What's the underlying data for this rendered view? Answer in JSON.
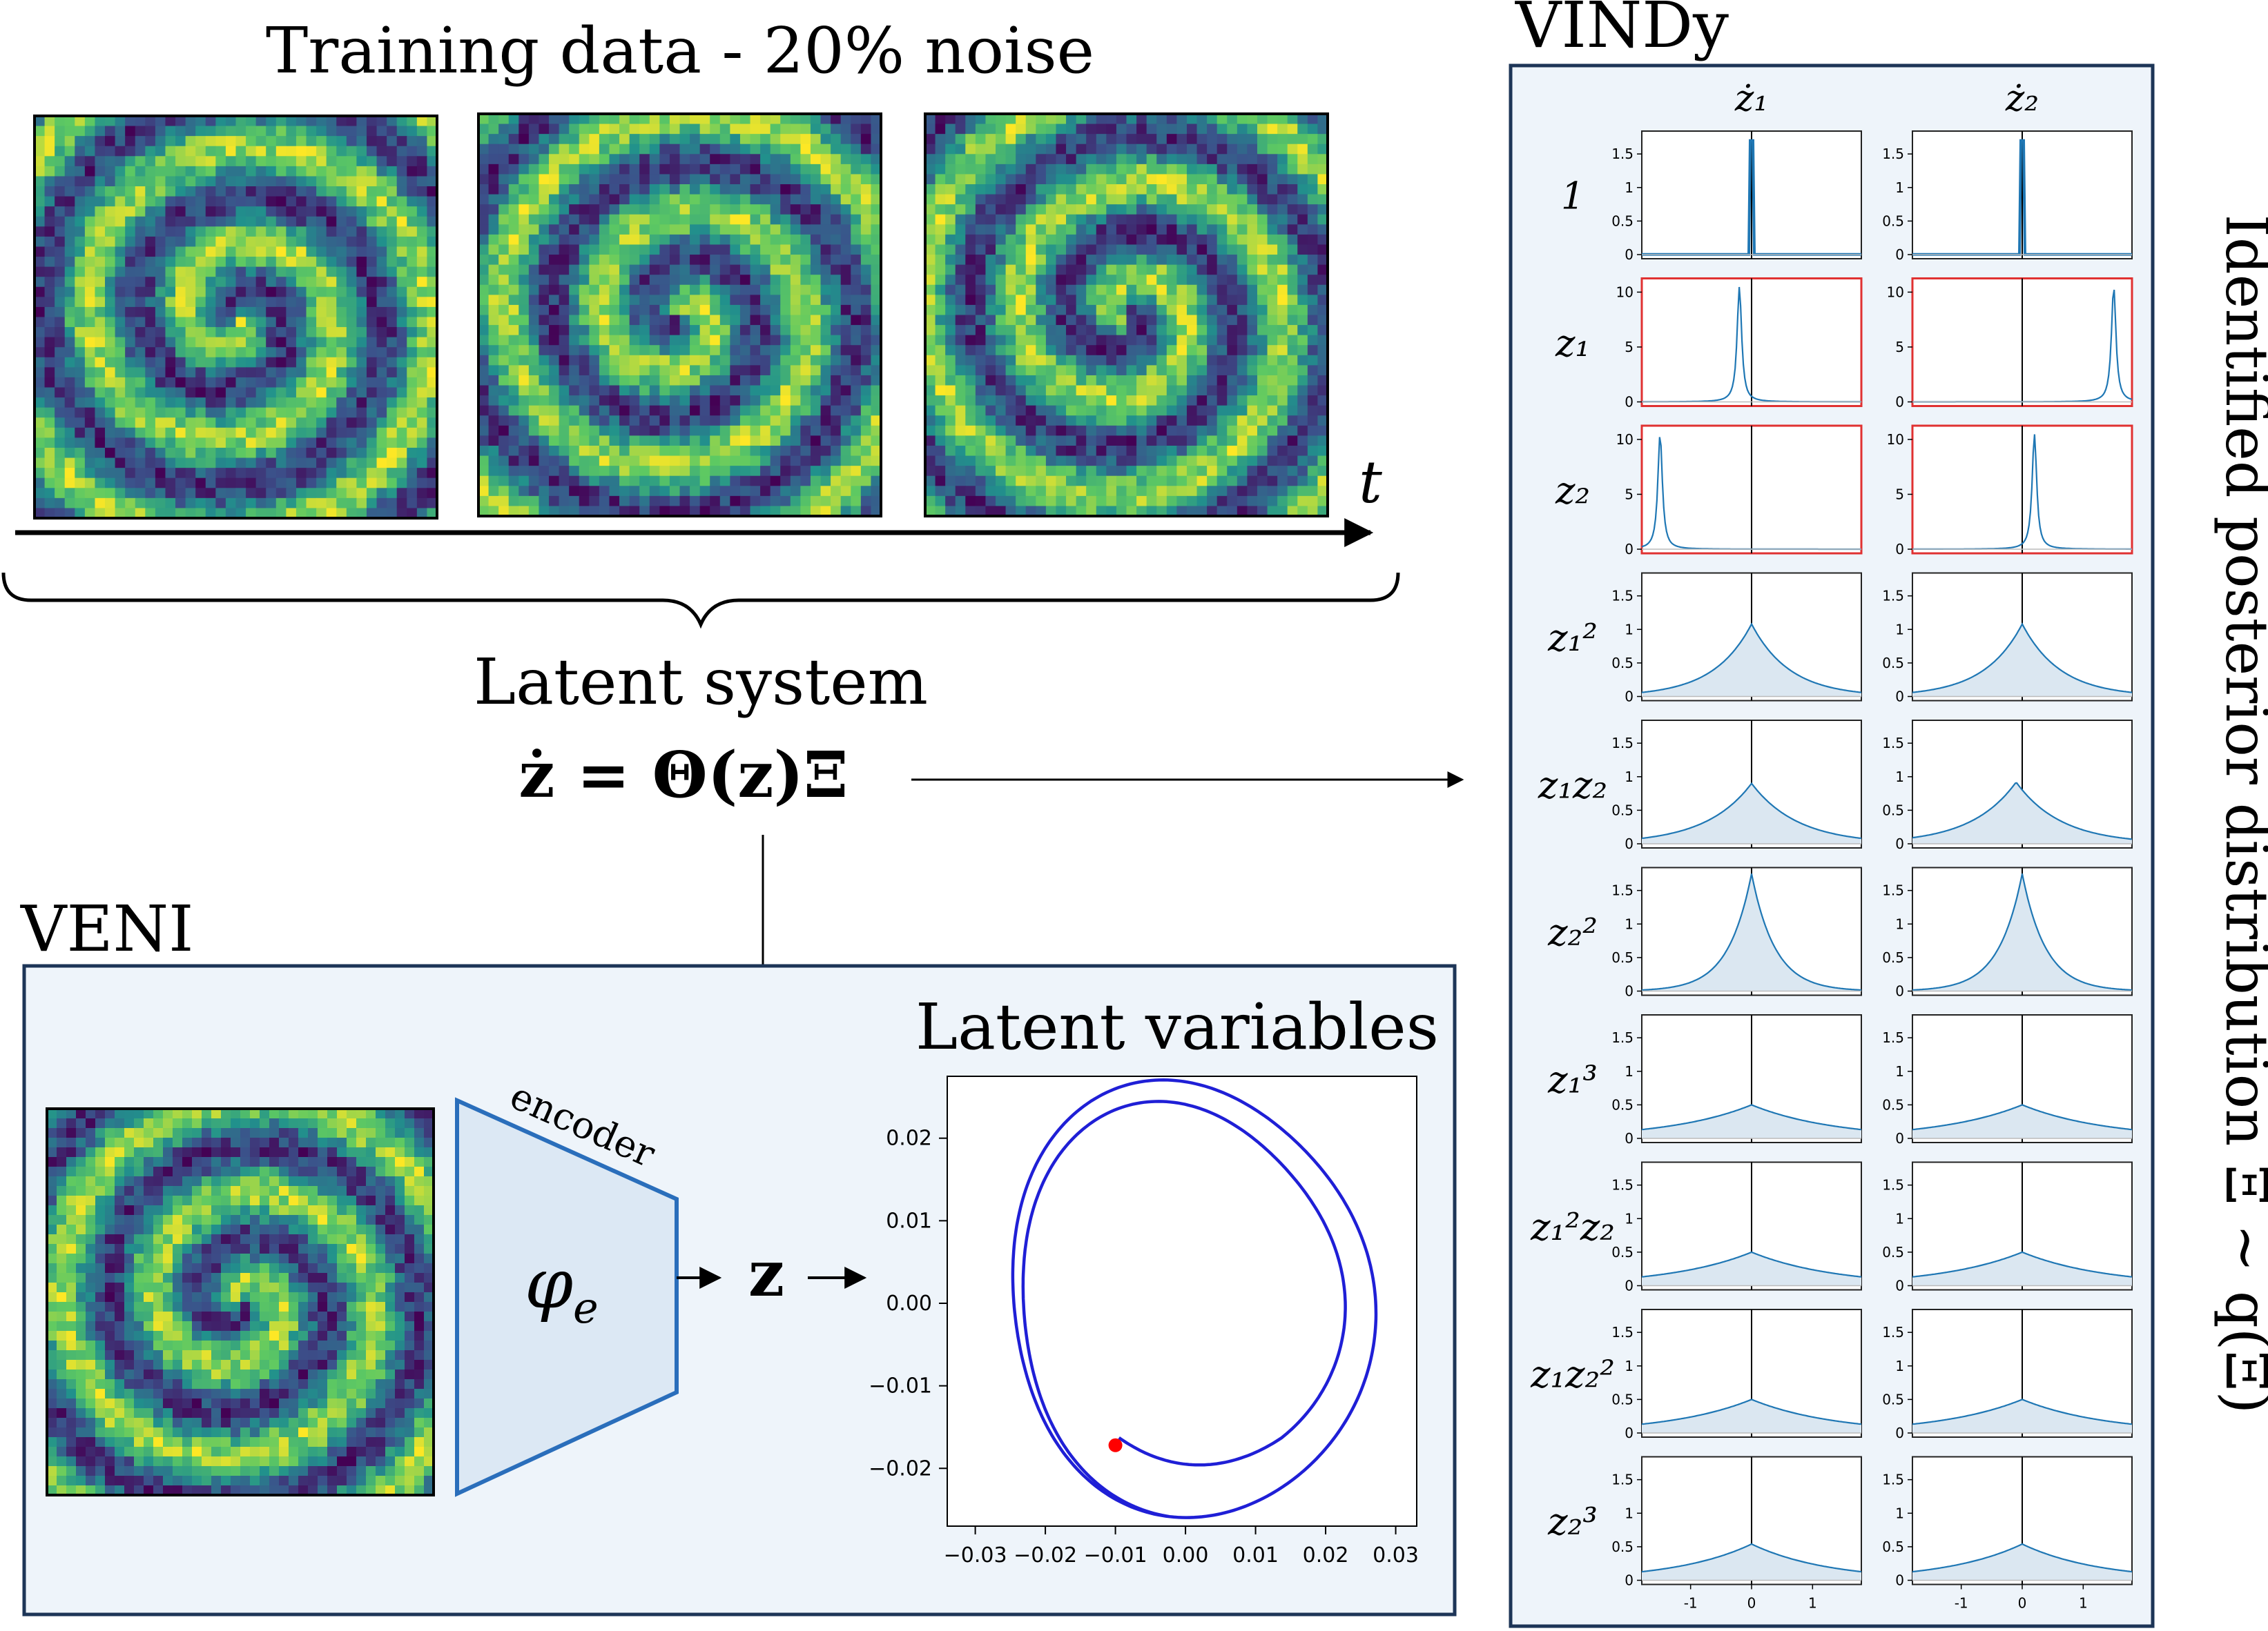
{
  "training": {
    "title": "Training data - 20% noise",
    "time_label": "t"
  },
  "latent_system": {
    "title": "Latent system",
    "equation": "ż = Θ(z)Ξ"
  },
  "veni": {
    "title": "VENI",
    "encoder_label": "encoder",
    "encoder_symbol": "φ",
    "encoder_subscript": "e",
    "latent_symbol": "z"
  },
  "latent_plot": {
    "title": "Latent variables",
    "chart_data": {
      "type": "line",
      "x_ticks": [
        "−0.03",
        "−0.02",
        "−0.01",
        "0.00",
        "0.01",
        "0.02",
        "0.03"
      ],
      "y_ticks": [
        "0.02",
        "0.01",
        "0.00",
        "−0.01",
        "−0.02"
      ],
      "xlim": [
        -0.034,
        0.033
      ],
      "ylim": [
        -0.027,
        0.0275
      ],
      "series_color": "#1f1fd6",
      "start_marker_color": "#ff0000",
      "start_point": [
        -0.01,
        -0.0172
      ]
    }
  },
  "vindy": {
    "title": "VINDy",
    "col_headers": [
      "ż₁",
      "ż₂"
    ],
    "side_label": "Identified posterior distribution Ξ ∼ q(Ξ)",
    "x_ticks": [
      "-1",
      "0",
      "1"
    ],
    "highlight_color": "#e03131",
    "curve_color": "#1f77b4",
    "rows": [
      {
        "term": "1",
        "y_ticks": [
          "1.5",
          "1",
          "0.5",
          "0"
        ],
        "active": false
      },
      {
        "term": "z₁",
        "y_ticks": [
          "10",
          "5",
          "0"
        ],
        "active": true
      },
      {
        "term": "z₂",
        "y_ticks": [
          "10",
          "5",
          "0"
        ],
        "active": true
      },
      {
        "term": "z₁²",
        "y_ticks": [
          "1.5",
          "1",
          "0.5",
          "0"
        ],
        "active": false
      },
      {
        "term": "z₁z₂",
        "y_ticks": [
          "1.5",
          "1",
          "0.5",
          "0"
        ],
        "active": false
      },
      {
        "term": "z₂²",
        "y_ticks": [
          "1.5",
          "1",
          "0.5",
          "0"
        ],
        "active": false
      },
      {
        "term": "z₁³",
        "y_ticks": [
          "1.5",
          "1",
          "0.5",
          "0"
        ],
        "active": false
      },
      {
        "term": "z₁²z₂",
        "y_ticks": [
          "1.5",
          "1",
          "0.5",
          "0"
        ],
        "active": false
      },
      {
        "term": "z₁z₂²",
        "y_ticks": [
          "1.5",
          "1",
          "0.5",
          "0"
        ],
        "active": false
      },
      {
        "term": "z₂³",
        "y_ticks": [
          "1.5",
          "1",
          "0.5",
          "0"
        ],
        "active": false
      }
    ],
    "chart_data": {
      "type": "line",
      "description_of_series": "posterior density per coefficient",
      "xlim": [
        -1.8,
        1.8
      ],
      "distributions": [
        [
          {
            "loc": 0,
            "peak": 1.7,
            "kind": "spike"
          },
          {
            "loc": 0,
            "peak": 1.7,
            "kind": "spike"
          }
        ],
        [
          {
            "loc": -0.2,
            "peak": 10.5,
            "kind": "peak"
          },
          {
            "loc": 1.5,
            "peak": 10.5,
            "kind": "peak"
          }
        ],
        [
          {
            "loc": -1.5,
            "peak": 10.5,
            "kind": "peak"
          },
          {
            "loc": 0.2,
            "peak": 10.5,
            "kind": "peak"
          }
        ],
        [
          {
            "loc": 0,
            "peak": 1.08,
            "kind": "laplace"
          },
          {
            "loc": 0,
            "peak": 1.08,
            "kind": "laplace"
          }
        ],
        [
          {
            "loc": 0,
            "peak": 0.9,
            "kind": "laplace"
          },
          {
            "loc": -0.1,
            "peak": 0.92,
            "kind": "laplace"
          }
        ],
        [
          {
            "loc": 0,
            "peak": 1.75,
            "kind": "laplace"
          },
          {
            "loc": 0,
            "peak": 1.75,
            "kind": "laplace"
          }
        ],
        [
          {
            "loc": 0,
            "peak": 0.5,
            "kind": "laplace"
          },
          {
            "loc": 0,
            "peak": 0.5,
            "kind": "laplace"
          }
        ],
        [
          {
            "loc": 0,
            "peak": 0.5,
            "kind": "laplace"
          },
          {
            "loc": 0,
            "peak": 0.5,
            "kind": "laplace"
          }
        ],
        [
          {
            "loc": 0,
            "peak": 0.5,
            "kind": "laplace"
          },
          {
            "loc": 0,
            "peak": 0.5,
            "kind": "laplace"
          }
        ],
        [
          {
            "loc": 0,
            "peak": 0.54,
            "kind": "laplace"
          },
          {
            "loc": 0,
            "peak": 0.54,
            "kind": "laplace"
          }
        ]
      ]
    }
  },
  "colors": {
    "panel_fill": "#eef4fa",
    "panel_border": "#1d3557",
    "encoder_fill": "#dce8f4",
    "encoder_stroke": "#2a6ebb"
  }
}
